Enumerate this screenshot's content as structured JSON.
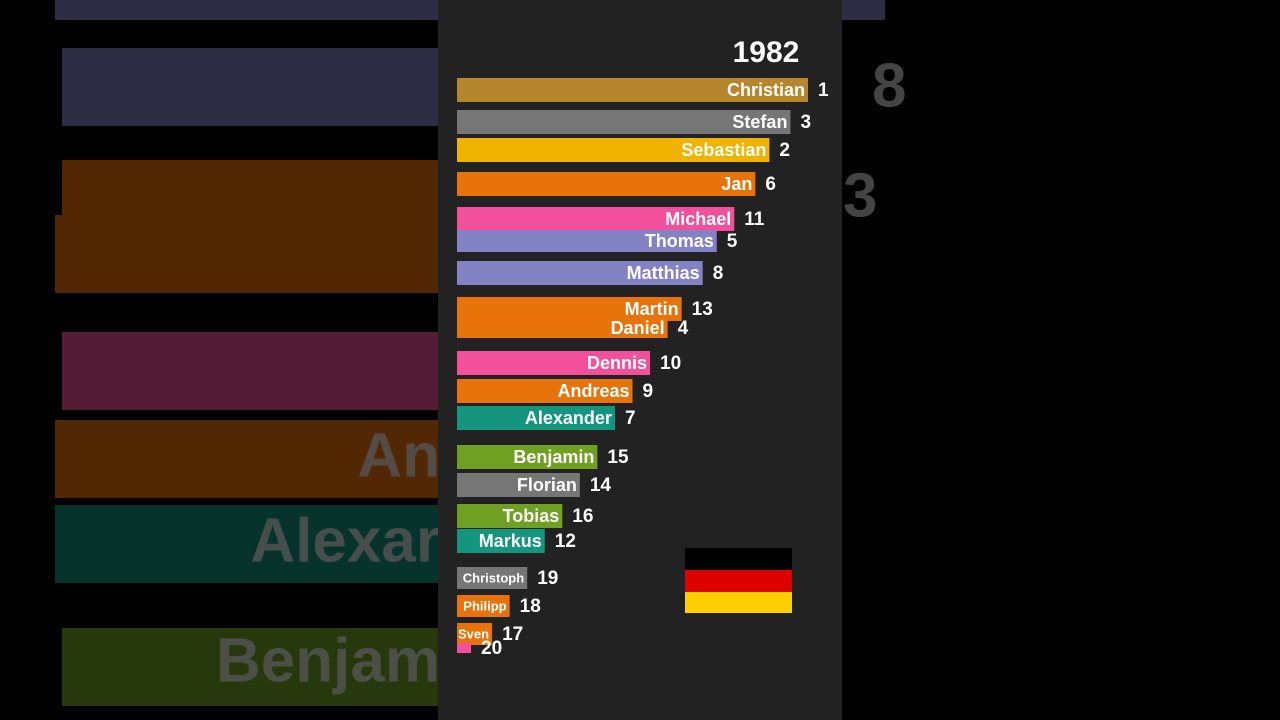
{
  "chart_data": {
    "type": "bar",
    "title": "1982",
    "categories": [
      "Christian",
      "Stefan",
      "Sebastian",
      "Jan",
      "Michael",
      "Thomas",
      "Matthias",
      "Martin",
      "Daniel",
      "Dennis",
      "Andreas",
      "Alexander",
      "Benjamin",
      "Florian",
      "Tobias",
      "Markus",
      "Christoph",
      "Philipp",
      "Sven",
      null
    ],
    "values": [
      100,
      95,
      89,
      85,
      79,
      74,
      70,
      64,
      60,
      55,
      50,
      45,
      40,
      35,
      30,
      25,
      20,
      15,
      10,
      4
    ],
    "ranks": [
      1,
      3,
      2,
      6,
      11,
      5,
      8,
      13,
      4,
      10,
      9,
      7,
      15,
      14,
      16,
      12,
      19,
      18,
      17,
      20
    ],
    "colors": [
      "#b5862b",
      "#767676",
      "#f0b400",
      "#e8730a",
      "#f2509a",
      "#8282c4",
      "#8282c4",
      "#e8730a",
      "#e8730a",
      "#f2509a",
      "#e8730a",
      "#13957e",
      "#6fa022",
      "#767676",
      "#6fa022",
      "#13957e",
      "#767676",
      "#e8730a",
      "#e8730a",
      "#f2509a"
    ],
    "xlim": [
      0,
      100
    ],
    "backdrop_text": [
      "An",
      "Alexar",
      "Benjam",
      "8",
      "3"
    ]
  }
}
